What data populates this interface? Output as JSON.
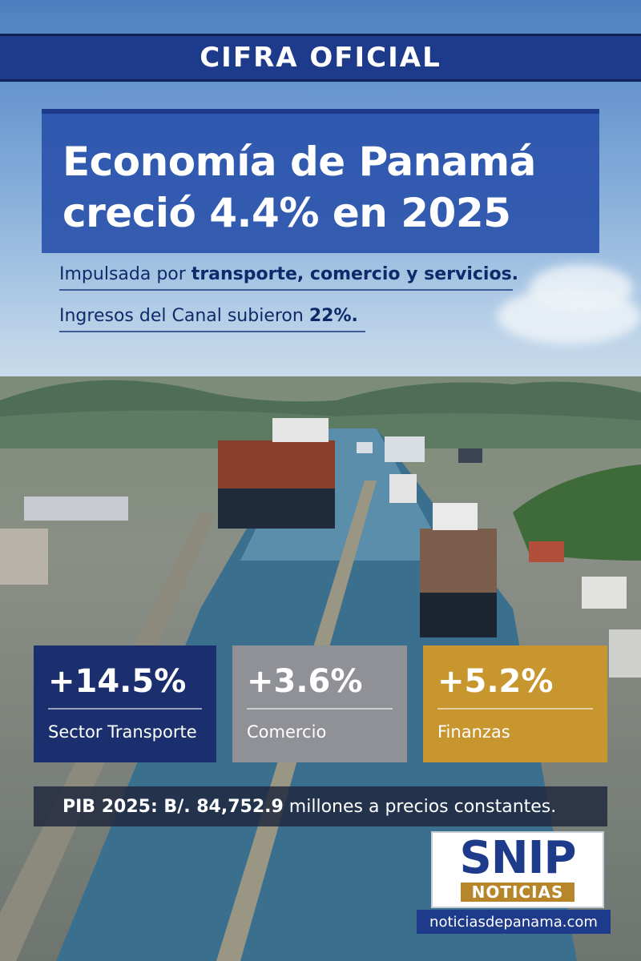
{
  "banner": {
    "label": "CIFRA OFICIAL"
  },
  "headline": {
    "line1": "Economía de Panamá",
    "line2": "creció 4.4% en 2025"
  },
  "subheads": {
    "drivers_prefix": "Impulsada por ",
    "drivers_bold": "transporte, comercio y servicios.",
    "canal_prefix": "Ingresos del Canal subieron ",
    "canal_bold": "22%."
  },
  "stats": [
    {
      "value": "+14.5%",
      "label": "Sector Transporte",
      "color": "#1b2f6e"
    },
    {
      "value": "+3.6%",
      "label": "Comercio",
      "color": "#8f9196"
    },
    {
      "value": "+5.2%",
      "label": "Finanzas",
      "color": "#c7962e"
    }
  ],
  "pib": {
    "bold": "PIB 2025: B/. 84,752.9",
    "rest": " millones a precios constantes."
  },
  "logo": {
    "main": "SNIP",
    "sub": "NOTICIAS",
    "url": "noticiasdepanama.com"
  },
  "colors": {
    "brand_blue": "#1e3a8a",
    "gold": "#b8862a"
  }
}
